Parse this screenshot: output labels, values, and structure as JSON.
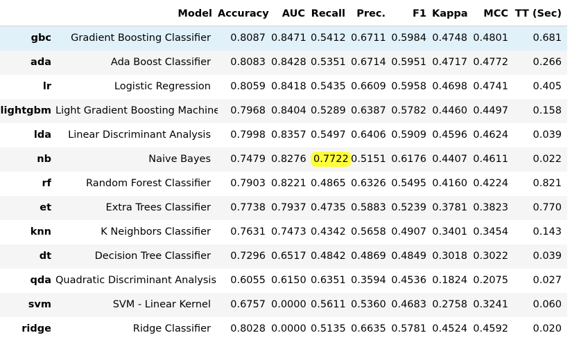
{
  "table": {
    "columns": [
      "",
      "Model",
      "Accuracy",
      "AUC",
      "Recall",
      "Prec.",
      "F1",
      "Kappa",
      "MCC",
      "TT (Sec)"
    ],
    "rows": [
      {
        "id": "gbc",
        "model": "Gradient Boosting Classifier",
        "values": [
          "0.8087",
          "0.8471",
          "0.5412",
          "0.6711",
          "0.5984",
          "0.4748",
          "0.4801",
          "0.681"
        ]
      },
      {
        "id": "ada",
        "model": "Ada Boost Classifier",
        "values": [
          "0.8083",
          "0.8428",
          "0.5351",
          "0.6714",
          "0.5951",
          "0.4717",
          "0.4772",
          "0.266"
        ]
      },
      {
        "id": "lr",
        "model": "Logistic Regression",
        "values": [
          "0.8059",
          "0.8418",
          "0.5435",
          "0.6609",
          "0.5958",
          "0.4698",
          "0.4741",
          "0.405"
        ]
      },
      {
        "id": "lightgbm",
        "model": "Light Gradient Boosting Machine",
        "values": [
          "0.7968",
          "0.8404",
          "0.5289",
          "0.6387",
          "0.5782",
          "0.4460",
          "0.4497",
          "0.158"
        ]
      },
      {
        "id": "lda",
        "model": "Linear Discriminant Analysis",
        "values": [
          "0.7998",
          "0.8357",
          "0.5497",
          "0.6406",
          "0.5909",
          "0.4596",
          "0.4624",
          "0.039"
        ]
      },
      {
        "id": "nb",
        "model": "Naive Bayes",
        "values": [
          "0.7479",
          "0.8276",
          "0.7722",
          "0.5151",
          "0.6176",
          "0.4407",
          "0.4611",
          "0.022"
        ]
      },
      {
        "id": "rf",
        "model": "Random Forest Classifier",
        "values": [
          "0.7903",
          "0.8221",
          "0.4865",
          "0.6326",
          "0.5495",
          "0.4160",
          "0.4224",
          "0.821"
        ]
      },
      {
        "id": "et",
        "model": "Extra Trees Classifier",
        "values": [
          "0.7738",
          "0.7937",
          "0.4735",
          "0.5883",
          "0.5239",
          "0.3781",
          "0.3823",
          "0.770"
        ]
      },
      {
        "id": "knn",
        "model": "K Neighbors Classifier",
        "values": [
          "0.7631",
          "0.7473",
          "0.4342",
          "0.5658",
          "0.4907",
          "0.3401",
          "0.3454",
          "0.143"
        ]
      },
      {
        "id": "dt",
        "model": "Decision Tree Classifier",
        "values": [
          "0.7296",
          "0.6517",
          "0.4842",
          "0.4869",
          "0.4849",
          "0.3018",
          "0.3022",
          "0.039"
        ]
      },
      {
        "id": "qda",
        "model": "Quadratic Discriminant Analysis",
        "values": [
          "0.6055",
          "0.6150",
          "0.6351",
          "0.3594",
          "0.4536",
          "0.1824",
          "0.2075",
          "0.027"
        ]
      },
      {
        "id": "svm",
        "model": "SVM - Linear Kernel",
        "values": [
          "0.6757",
          "0.0000",
          "0.5611",
          "0.5360",
          "0.4683",
          "0.2758",
          "0.3241",
          "0.060"
        ]
      },
      {
        "id": "ridge",
        "model": "Ridge Classifier",
        "values": [
          "0.8028",
          "0.0000",
          "0.5135",
          "0.6635",
          "0.5781",
          "0.4524",
          "0.4592",
          "0.020"
        ]
      }
    ]
  },
  "style": {
    "selected_row_color": "#e1f1fa",
    "alt_row_color": "#f5f5f5",
    "highlight_color": "#ffff3d"
  }
}
